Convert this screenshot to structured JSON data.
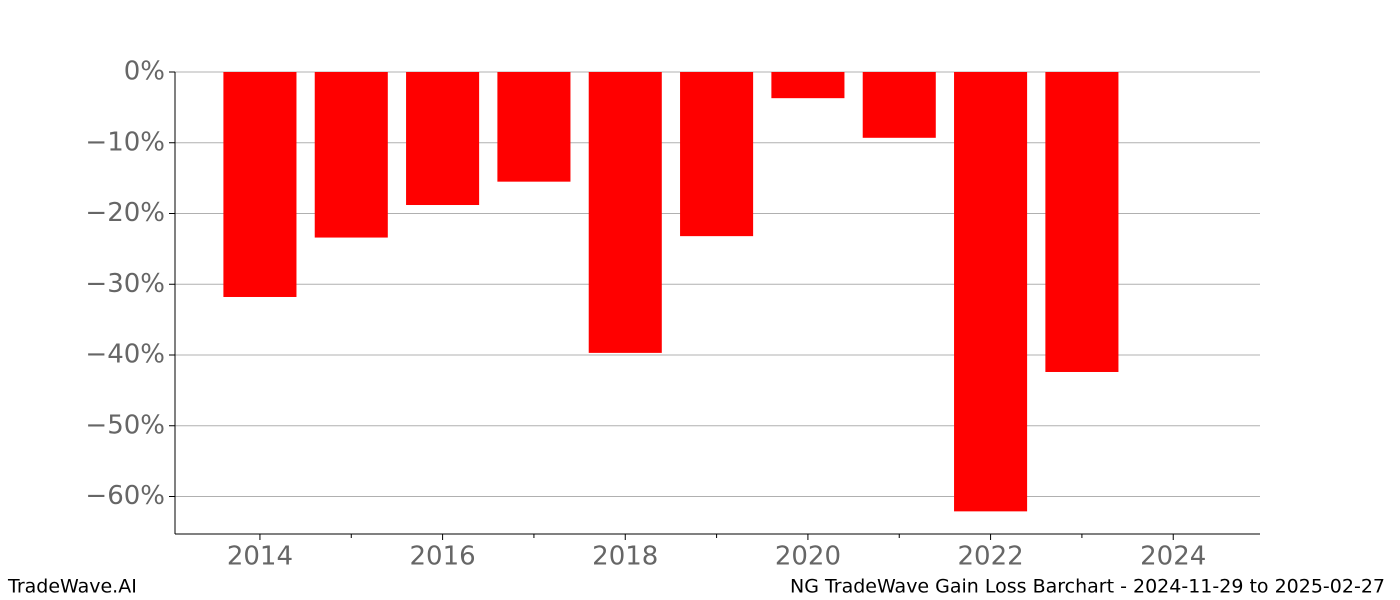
{
  "chart_data": {
    "type": "bar",
    "title": "NG TradeWave Gain Loss Barchart - 2024-11-29 to 2025-02-27",
    "source": "TradeWave.AI",
    "x": [
      2014,
      2015,
      2016,
      2017,
      2018,
      2019,
      2020,
      2021,
      2022,
      2023
    ],
    "values": [
      -31.8,
      -23.4,
      -18.8,
      -15.5,
      -39.7,
      -23.2,
      -3.7,
      -9.3,
      -62.1,
      -42.4
    ],
    "color": "#ff0000",
    "xlim": [
      2013.07,
      2024.95
    ],
    "xticks": [
      2014,
      2016,
      2018,
      2020,
      2022,
      2024
    ],
    "xminorticks": [
      2015,
      2017,
      2019,
      2021,
      2023
    ],
    "ylim": [
      -65.3,
      0
    ],
    "yticks": [
      {
        "value": 0,
        "label": "0%"
      },
      {
        "value": -10,
        "label": "−10%"
      },
      {
        "value": -20,
        "label": "−20%"
      },
      {
        "value": -30,
        "label": "−30%"
      },
      {
        "value": -40,
        "label": "−40%"
      },
      {
        "value": -50,
        "label": "−50%"
      },
      {
        "value": -60,
        "label": "−60%"
      }
    ],
    "grid": true
  }
}
